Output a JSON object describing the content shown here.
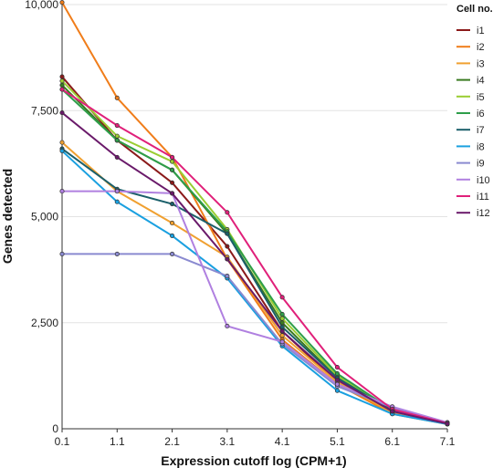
{
  "chart_data": {
    "type": "line",
    "title": "",
    "xlabel": "Expression cutoff log (CPM+1)",
    "ylabel": "Genes detected",
    "x": [
      0.1,
      1.1,
      2.1,
      3.1,
      4.1,
      5.1,
      6.1,
      7.1
    ],
    "x_tick_labels": [
      "0.1",
      "1.1",
      "2.1",
      "3.1",
      "4.1",
      "5.1",
      "6.1",
      "7.1"
    ],
    "y_ticks": [
      0,
      2500,
      5000,
      7500,
      10000
    ],
    "y_tick_labels": [
      "0",
      "2,500",
      "5,000",
      "7,500",
      "10,000"
    ],
    "ylim": [
      0,
      10000
    ],
    "grid": "horizontal",
    "legend_title": "Cell no.",
    "legend_position": "top-right",
    "series": [
      {
        "name": "i1",
        "color": "#8b1a1a",
        "values": [
          8300,
          6800,
          5800,
          4300,
          2300,
          1100,
          400,
          120
        ]
      },
      {
        "name": "i2",
        "color": "#f07d1a",
        "values": [
          10050,
          7800,
          6400,
          4000,
          2100,
          1050,
          350,
          110
        ]
      },
      {
        "name": "i3",
        "color": "#f0a030",
        "values": [
          6750,
          5600,
          4850,
          4050,
          2200,
          1100,
          380,
          110
        ]
      },
      {
        "name": "i4",
        "color": "#3a7a20",
        "values": [
          8100,
          6800,
          6100,
          4600,
          2500,
          1200,
          420,
          120
        ]
      },
      {
        "name": "i5",
        "color": "#9acd32",
        "values": [
          8200,
          6900,
          6300,
          4700,
          2600,
          1250,
          430,
          125
        ]
      },
      {
        "name": "i6",
        "color": "#2e9e4a",
        "values": [
          8000,
          6800,
          6100,
          4650,
          2700,
          1300,
          440,
          130
        ]
      },
      {
        "name": "i7",
        "color": "#1a5f6a",
        "values": [
          6600,
          5650,
          5300,
          4600,
          2400,
          1200,
          420,
          120
        ]
      },
      {
        "name": "i8",
        "color": "#1aa0e0",
        "values": [
          6550,
          5350,
          4550,
          3550,
          1950,
          900,
          350,
          110
        ]
      },
      {
        "name": "i9",
        "color": "#8a8ad0",
        "values": [
          4120,
          4120,
          4120,
          3600,
          2000,
          1000,
          500,
          140
        ]
      },
      {
        "name": "i10",
        "color": "#b080e0",
        "values": [
          5600,
          5600,
          5550,
          2420,
          2050,
          1050,
          520,
          150
        ]
      },
      {
        "name": "i11",
        "color": "#e0207a",
        "values": [
          8000,
          7150,
          6400,
          5100,
          3100,
          1450,
          460,
          130
        ]
      },
      {
        "name": "i12",
        "color": "#6a1a6a",
        "values": [
          7450,
          6400,
          5550,
          4000,
          2300,
          1150,
          410,
          120
        ]
      }
    ]
  }
}
